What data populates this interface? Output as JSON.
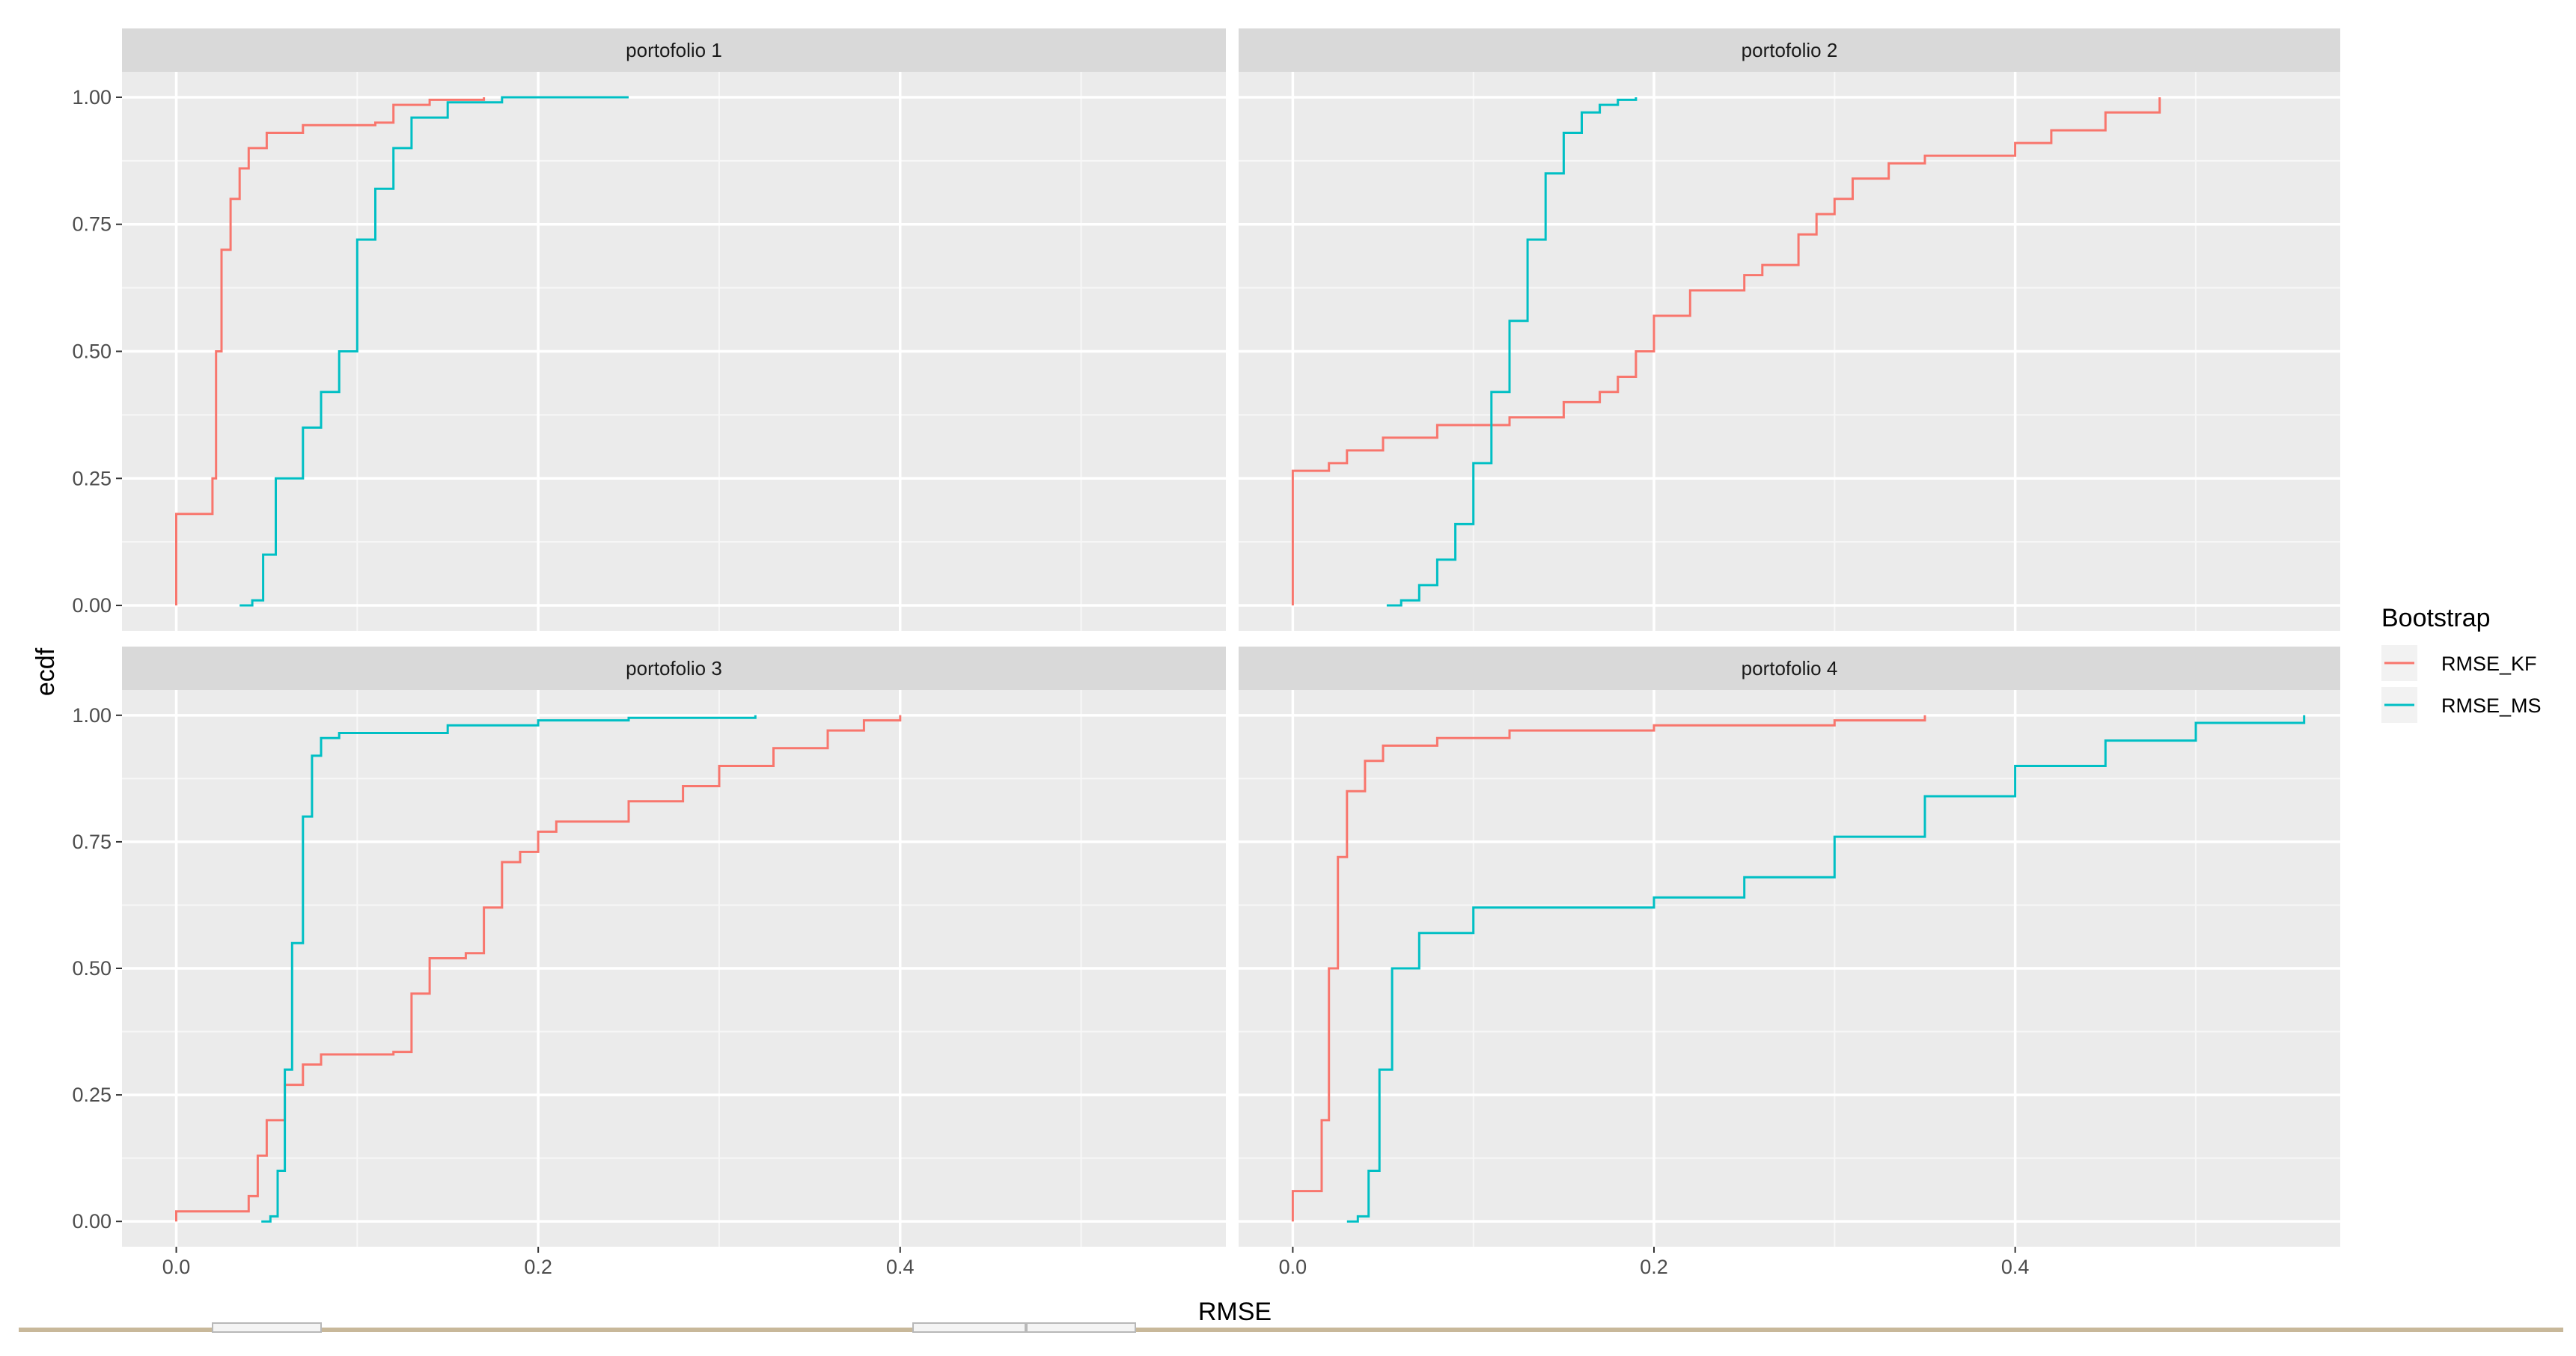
{
  "chart_data": {
    "type": "line",
    "subtype": "ecdf-step",
    "xlabel": "RMSE",
    "ylabel": "ecdf",
    "y_ticks": [
      0.0,
      0.25,
      0.5,
      0.75,
      1.0
    ],
    "y_tick_labels": [
      "0.00",
      "0.25",
      "0.50",
      "0.75",
      "1.00"
    ],
    "ylim": [
      -0.05,
      1.05
    ],
    "grid": true,
    "legend": {
      "title": "Bootstrap",
      "placement": "right",
      "entries": [
        {
          "label": "RMSE_KF",
          "color": "#F8766D"
        },
        {
          "label": "RMSE_MS",
          "color": "#00BFC4"
        }
      ]
    },
    "panels": [
      {
        "title": "portofolio 1",
        "xlim": [
          -0.03,
          0.58
        ],
        "x_ticks": [
          0.0,
          0.2,
          0.4
        ],
        "x_tick_labels": [
          "0.0",
          "0.2",
          "0.4"
        ],
        "series": [
          {
            "name": "RMSE_KF",
            "color": "#F8766D",
            "points": [
              [
                0.0,
                0.0
              ],
              [
                0.0,
                0.18
              ],
              [
                0.016,
                0.18
              ],
              [
                0.02,
                0.25
              ],
              [
                0.022,
                0.5
              ],
              [
                0.025,
                0.7
              ],
              [
                0.03,
                0.8
              ],
              [
                0.035,
                0.86
              ],
              [
                0.04,
                0.9
              ],
              [
                0.05,
                0.93
              ],
              [
                0.07,
                0.945
              ],
              [
                0.11,
                0.95
              ],
              [
                0.12,
                0.985
              ],
              [
                0.14,
                0.995
              ],
              [
                0.17,
                1.0
              ]
            ]
          },
          {
            "name": "RMSE_MS",
            "color": "#00BFC4",
            "points": [
              [
                0.035,
                0.0
              ],
              [
                0.042,
                0.01
              ],
              [
                0.048,
                0.1
              ],
              [
                0.055,
                0.25
              ],
              [
                0.07,
                0.35
              ],
              [
                0.08,
                0.42
              ],
              [
                0.09,
                0.5
              ],
              [
                0.1,
                0.72
              ],
              [
                0.11,
                0.82
              ],
              [
                0.12,
                0.9
              ],
              [
                0.13,
                0.96
              ],
              [
                0.15,
                0.99
              ],
              [
                0.18,
                1.0
              ],
              [
                0.25,
                1.0
              ]
            ]
          }
        ]
      },
      {
        "title": "portofolio 2",
        "xlim": [
          -0.03,
          0.58
        ],
        "x_ticks": [
          0.0,
          0.2,
          0.4
        ],
        "x_tick_labels": [
          "0.0",
          "0.2",
          "0.4"
        ],
        "series": [
          {
            "name": "RMSE_KF",
            "color": "#F8766D",
            "points": [
              [
                0.0,
                0.0
              ],
              [
                0.0,
                0.265
              ],
              [
                0.02,
                0.28
              ],
              [
                0.03,
                0.305
              ],
              [
                0.05,
                0.33
              ],
              [
                0.08,
                0.355
              ],
              [
                0.12,
                0.37
              ],
              [
                0.15,
                0.4
              ],
              [
                0.17,
                0.42
              ],
              [
                0.18,
                0.45
              ],
              [
                0.19,
                0.5
              ],
              [
                0.2,
                0.57
              ],
              [
                0.22,
                0.62
              ],
              [
                0.25,
                0.65
              ],
              [
                0.26,
                0.67
              ],
              [
                0.28,
                0.73
              ],
              [
                0.29,
                0.77
              ],
              [
                0.3,
                0.8
              ],
              [
                0.31,
                0.84
              ],
              [
                0.33,
                0.87
              ],
              [
                0.35,
                0.885
              ],
              [
                0.4,
                0.91
              ],
              [
                0.42,
                0.935
              ],
              [
                0.45,
                0.97
              ],
              [
                0.48,
                1.0
              ]
            ]
          },
          {
            "name": "RMSE_MS",
            "color": "#00BFC4",
            "points": [
              [
                0.052,
                0.0
              ],
              [
                0.06,
                0.01
              ],
              [
                0.07,
                0.04
              ],
              [
                0.08,
                0.09
              ],
              [
                0.09,
                0.16
              ],
              [
                0.1,
                0.28
              ],
              [
                0.11,
                0.42
              ],
              [
                0.12,
                0.56
              ],
              [
                0.13,
                0.72
              ],
              [
                0.14,
                0.85
              ],
              [
                0.15,
                0.93
              ],
              [
                0.16,
                0.97
              ],
              [
                0.17,
                0.985
              ],
              [
                0.18,
                0.995
              ],
              [
                0.19,
                1.0
              ]
            ]
          }
        ]
      },
      {
        "title": "portofolio 3",
        "xlim": [
          -0.03,
          0.58
        ],
        "x_ticks": [
          0.0,
          0.2,
          0.4
        ],
        "x_tick_labels": [
          "0.0",
          "0.2",
          "0.4"
        ],
        "series": [
          {
            "name": "RMSE_KF",
            "color": "#F8766D",
            "points": [
              [
                0.0,
                0.0
              ],
              [
                0.0,
                0.02
              ],
              [
                0.03,
                0.02
              ],
              [
                0.04,
                0.05
              ],
              [
                0.045,
                0.13
              ],
              [
                0.05,
                0.2
              ],
              [
                0.06,
                0.27
              ],
              [
                0.07,
                0.31
              ],
              [
                0.08,
                0.33
              ],
              [
                0.12,
                0.335
              ],
              [
                0.13,
                0.45
              ],
              [
                0.14,
                0.52
              ],
              [
                0.16,
                0.53
              ],
              [
                0.17,
                0.62
              ],
              [
                0.18,
                0.71
              ],
              [
                0.19,
                0.73
              ],
              [
                0.2,
                0.77
              ],
              [
                0.21,
                0.79
              ],
              [
                0.25,
                0.83
              ],
              [
                0.28,
                0.86
              ],
              [
                0.3,
                0.9
              ],
              [
                0.33,
                0.935
              ],
              [
                0.36,
                0.97
              ],
              [
                0.38,
                0.99
              ],
              [
                0.4,
                1.0
              ]
            ]
          },
          {
            "name": "RMSE_MS",
            "color": "#00BFC4",
            "points": [
              [
                0.047,
                0.0
              ],
              [
                0.052,
                0.01
              ],
              [
                0.056,
                0.1
              ],
              [
                0.06,
                0.3
              ],
              [
                0.064,
                0.55
              ],
              [
                0.07,
                0.8
              ],
              [
                0.075,
                0.92
              ],
              [
                0.08,
                0.955
              ],
              [
                0.09,
                0.965
              ],
              [
                0.15,
                0.98
              ],
              [
                0.2,
                0.99
              ],
              [
                0.25,
                0.995
              ],
              [
                0.32,
                1.0
              ]
            ]
          }
        ]
      },
      {
        "title": "portofolio 4",
        "xlim": [
          -0.03,
          0.58
        ],
        "x_ticks": [
          0.0,
          0.2,
          0.4
        ],
        "x_tick_labels": [
          "0.0",
          "0.2",
          "0.4"
        ],
        "series": [
          {
            "name": "RMSE_KF",
            "color": "#F8766D",
            "points": [
              [
                0.0,
                0.0
              ],
              [
                0.0,
                0.06
              ],
              [
                0.012,
                0.06
              ],
              [
                0.016,
                0.2
              ],
              [
                0.02,
                0.5
              ],
              [
                0.025,
                0.72
              ],
              [
                0.03,
                0.85
              ],
              [
                0.04,
                0.91
              ],
              [
                0.05,
                0.94
              ],
              [
                0.08,
                0.955
              ],
              [
                0.12,
                0.97
              ],
              [
                0.2,
                0.98
              ],
              [
                0.3,
                0.99
              ],
              [
                0.35,
                1.0
              ]
            ]
          },
          {
            "name": "RMSE_MS",
            "color": "#00BFC4",
            "points": [
              [
                0.03,
                0.0
              ],
              [
                0.036,
                0.01
              ],
              [
                0.042,
                0.1
              ],
              [
                0.048,
                0.3
              ],
              [
                0.055,
                0.5
              ],
              [
                0.07,
                0.57
              ],
              [
                0.1,
                0.62
              ],
              [
                0.2,
                0.64
              ],
              [
                0.25,
                0.68
              ],
              [
                0.3,
                0.76
              ],
              [
                0.35,
                0.84
              ],
              [
                0.4,
                0.9
              ],
              [
                0.45,
                0.95
              ],
              [
                0.5,
                0.985
              ],
              [
                0.56,
                1.0
              ]
            ]
          }
        ]
      }
    ]
  }
}
